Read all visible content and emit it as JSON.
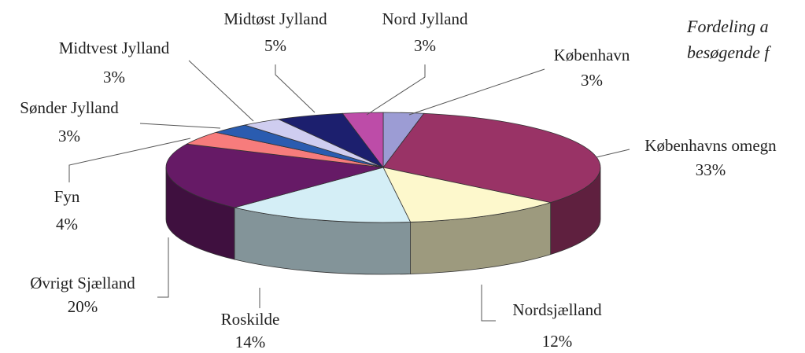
{
  "chart_data": {
    "type": "pie",
    "title": [
      "Fordeling a",
      "besøgende f"
    ],
    "categories": [
      "København",
      "Københavns omegn",
      "Nordsjælland",
      "Roskilde",
      "Øvrigt Sjælland",
      "Fyn",
      "Sønder Jylland",
      "Midtvest Jylland",
      "Midtøst Jylland",
      "Nord Jylland"
    ],
    "values": [
      3,
      33,
      12,
      14,
      20,
      4,
      3,
      3,
      5,
      3
    ],
    "value_labels": [
      "3%",
      "33%",
      "12%",
      "14%",
      "20%",
      "4%",
      "3%",
      "3%",
      "5%",
      "3%"
    ],
    "colors": [
      "#9c9cd4",
      "#993366",
      "#fdf8cc",
      "#d4eef6",
      "#661a66",
      "#f77c7c",
      "#2a5cb0",
      "#cfcdf0",
      "#1c1f6e",
      "#bd4ca8"
    ]
  }
}
